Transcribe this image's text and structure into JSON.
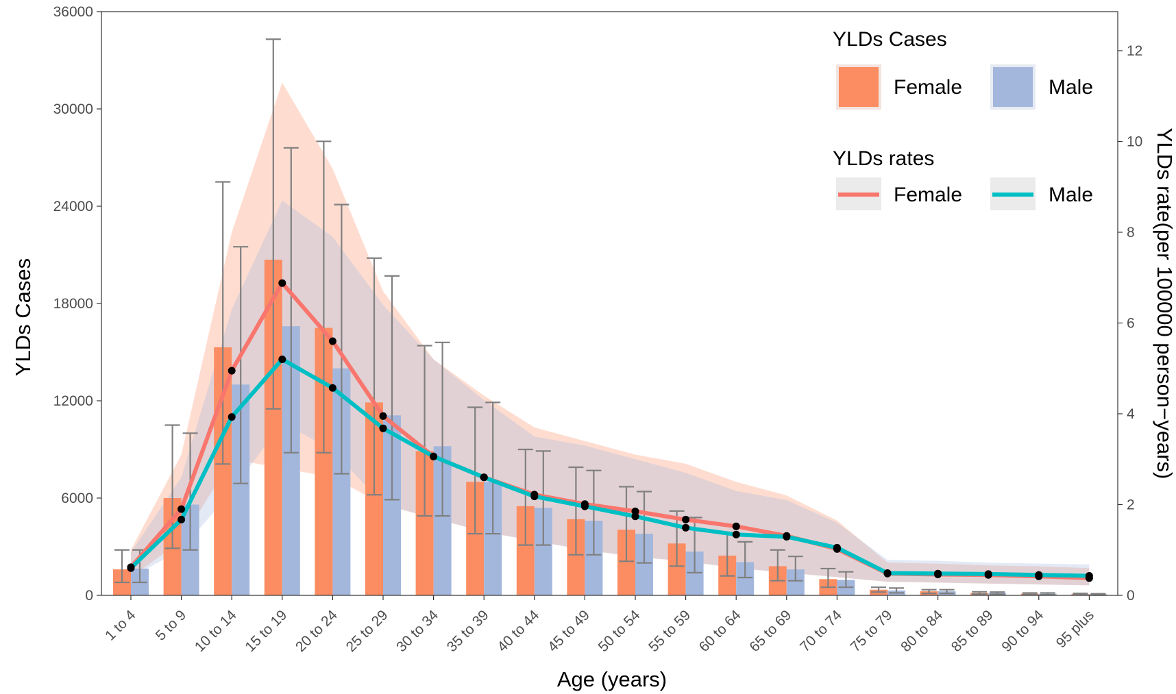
{
  "chart_data": {
    "type": "bar",
    "categories": [
      "1 to 4",
      "5 to 9",
      "10 to 14",
      "15 to 19",
      "20 to 24",
      "25 to 29",
      "30 to 34",
      "35 to 39",
      "40 to 44",
      "45 to 49",
      "50 to 54",
      "55 to 59",
      "60 to 64",
      "65 to 69",
      "70 to 74",
      "75 to 79",
      "80 to 84",
      "85 to 89",
      "90 to 94",
      "95 plus"
    ],
    "xlabel": "Age (years)",
    "ylabel": "YLDs Cases",
    "y2label": "YLDs rate(per 100000 person−years)",
    "ylim": [
      0,
      36000
    ],
    "y2lim": [
      0,
      12.86
    ],
    "yticks": [
      "0",
      "6000",
      "12000",
      "18000",
      "24000",
      "30000",
      "36000"
    ],
    "y2ticks": [
      "0",
      "2",
      "4",
      "6",
      "8",
      "10",
      "12"
    ],
    "grid": false,
    "legend_position": "top-right",
    "colors": {
      "female_bar": "#FC8D62",
      "male_bar": "#A3B7DD",
      "female_line": "#F8766D",
      "male_line": "#00BFC4",
      "error_bar": "#808080",
      "point": "#000000"
    },
    "bar_series": [
      {
        "name": "Female",
        "values": [
          1600,
          6000,
          15300,
          20700,
          16500,
          11900,
          8900,
          7000,
          5500,
          4700,
          4050,
          3200,
          2450,
          1800,
          1000,
          350,
          250,
          150,
          100,
          80
        ],
        "lower": [
          800,
          2900,
          8100,
          11500,
          8800,
          6200,
          4900,
          3800,
          3100,
          2500,
          2100,
          1800,
          1200,
          900,
          500,
          200,
          120,
          80,
          50,
          30
        ],
        "upper": [
          2800,
          10500,
          25500,
          34300,
          28000,
          20800,
          15400,
          11600,
          9000,
          7900,
          6700,
          5200,
          3800,
          2800,
          1650,
          500,
          350,
          220,
          150,
          120
        ]
      },
      {
        "name": "Male",
        "values": [
          1650,
          5600,
          13000,
          16600,
          14000,
          11100,
          9200,
          7000,
          5400,
          4600,
          3800,
          2700,
          2050,
          1600,
          950,
          300,
          250,
          150,
          100,
          70
        ],
        "lower": [
          800,
          2800,
          6900,
          8800,
          7500,
          5900,
          4900,
          3800,
          3100,
          2500,
          2000,
          1400,
          1100,
          900,
          500,
          150,
          120,
          70,
          40,
          20
        ],
        "upper": [
          2800,
          10000,
          21500,
          27600,
          24100,
          19700,
          15600,
          11900,
          8900,
          7700,
          6400,
          4800,
          3300,
          2400,
          1450,
          450,
          350,
          200,
          150,
          100
        ]
      }
    ],
    "line_series": [
      {
        "name": "Female",
        "values": [
          0.62,
          1.9,
          4.95,
          6.88,
          5.6,
          3.95,
          3.06,
          2.6,
          2.22,
          2.01,
          1.85,
          1.67,
          1.52,
          1.31,
          1.02,
          0.48,
          0.46,
          0.45,
          0.42,
          0.38
        ],
        "lower": [
          0.4,
          1.2,
          3.0,
          2.8,
          2.6,
          2.0,
          1.7,
          1.4,
          1.2,
          1.0,
          0.85,
          0.75,
          0.6,
          0.5,
          0.4,
          0.3,
          0.28,
          0.26,
          0.24,
          0.22
        ],
        "upper": [
          1.0,
          3.1,
          8.0,
          11.3,
          9.4,
          6.7,
          5.2,
          4.4,
          3.7,
          3.4,
          3.1,
          2.9,
          2.5,
          2.2,
          1.65,
          0.72,
          0.7,
          0.66,
          0.64,
          0.6
        ]
      },
      {
        "name": "Male",
        "values": [
          0.6,
          1.67,
          3.93,
          5.2,
          4.57,
          3.68,
          3.06,
          2.6,
          2.18,
          1.96,
          1.74,
          1.49,
          1.34,
          1.29,
          1.05,
          0.49,
          0.48,
          0.47,
          0.45,
          0.43
        ],
        "lower": [
          0.4,
          1.0,
          2.3,
          3.8,
          3.2,
          2.0,
          1.7,
          1.4,
          1.2,
          1.0,
          0.85,
          0.75,
          0.6,
          0.5,
          0.4,
          0.3,
          0.28,
          0.26,
          0.24,
          0.22
        ],
        "upper": [
          0.95,
          2.6,
          6.3,
          8.7,
          7.9,
          6.4,
          5.2,
          4.3,
          3.5,
          3.3,
          3.0,
          2.7,
          2.3,
          2.1,
          1.6,
          0.78,
          0.76,
          0.72,
          0.7,
          0.68
        ]
      }
    ],
    "legend": {
      "cases_title": "YLDs Cases",
      "rates_title": "YLDs rates",
      "female_label": "Female",
      "male_label": "Male"
    }
  }
}
